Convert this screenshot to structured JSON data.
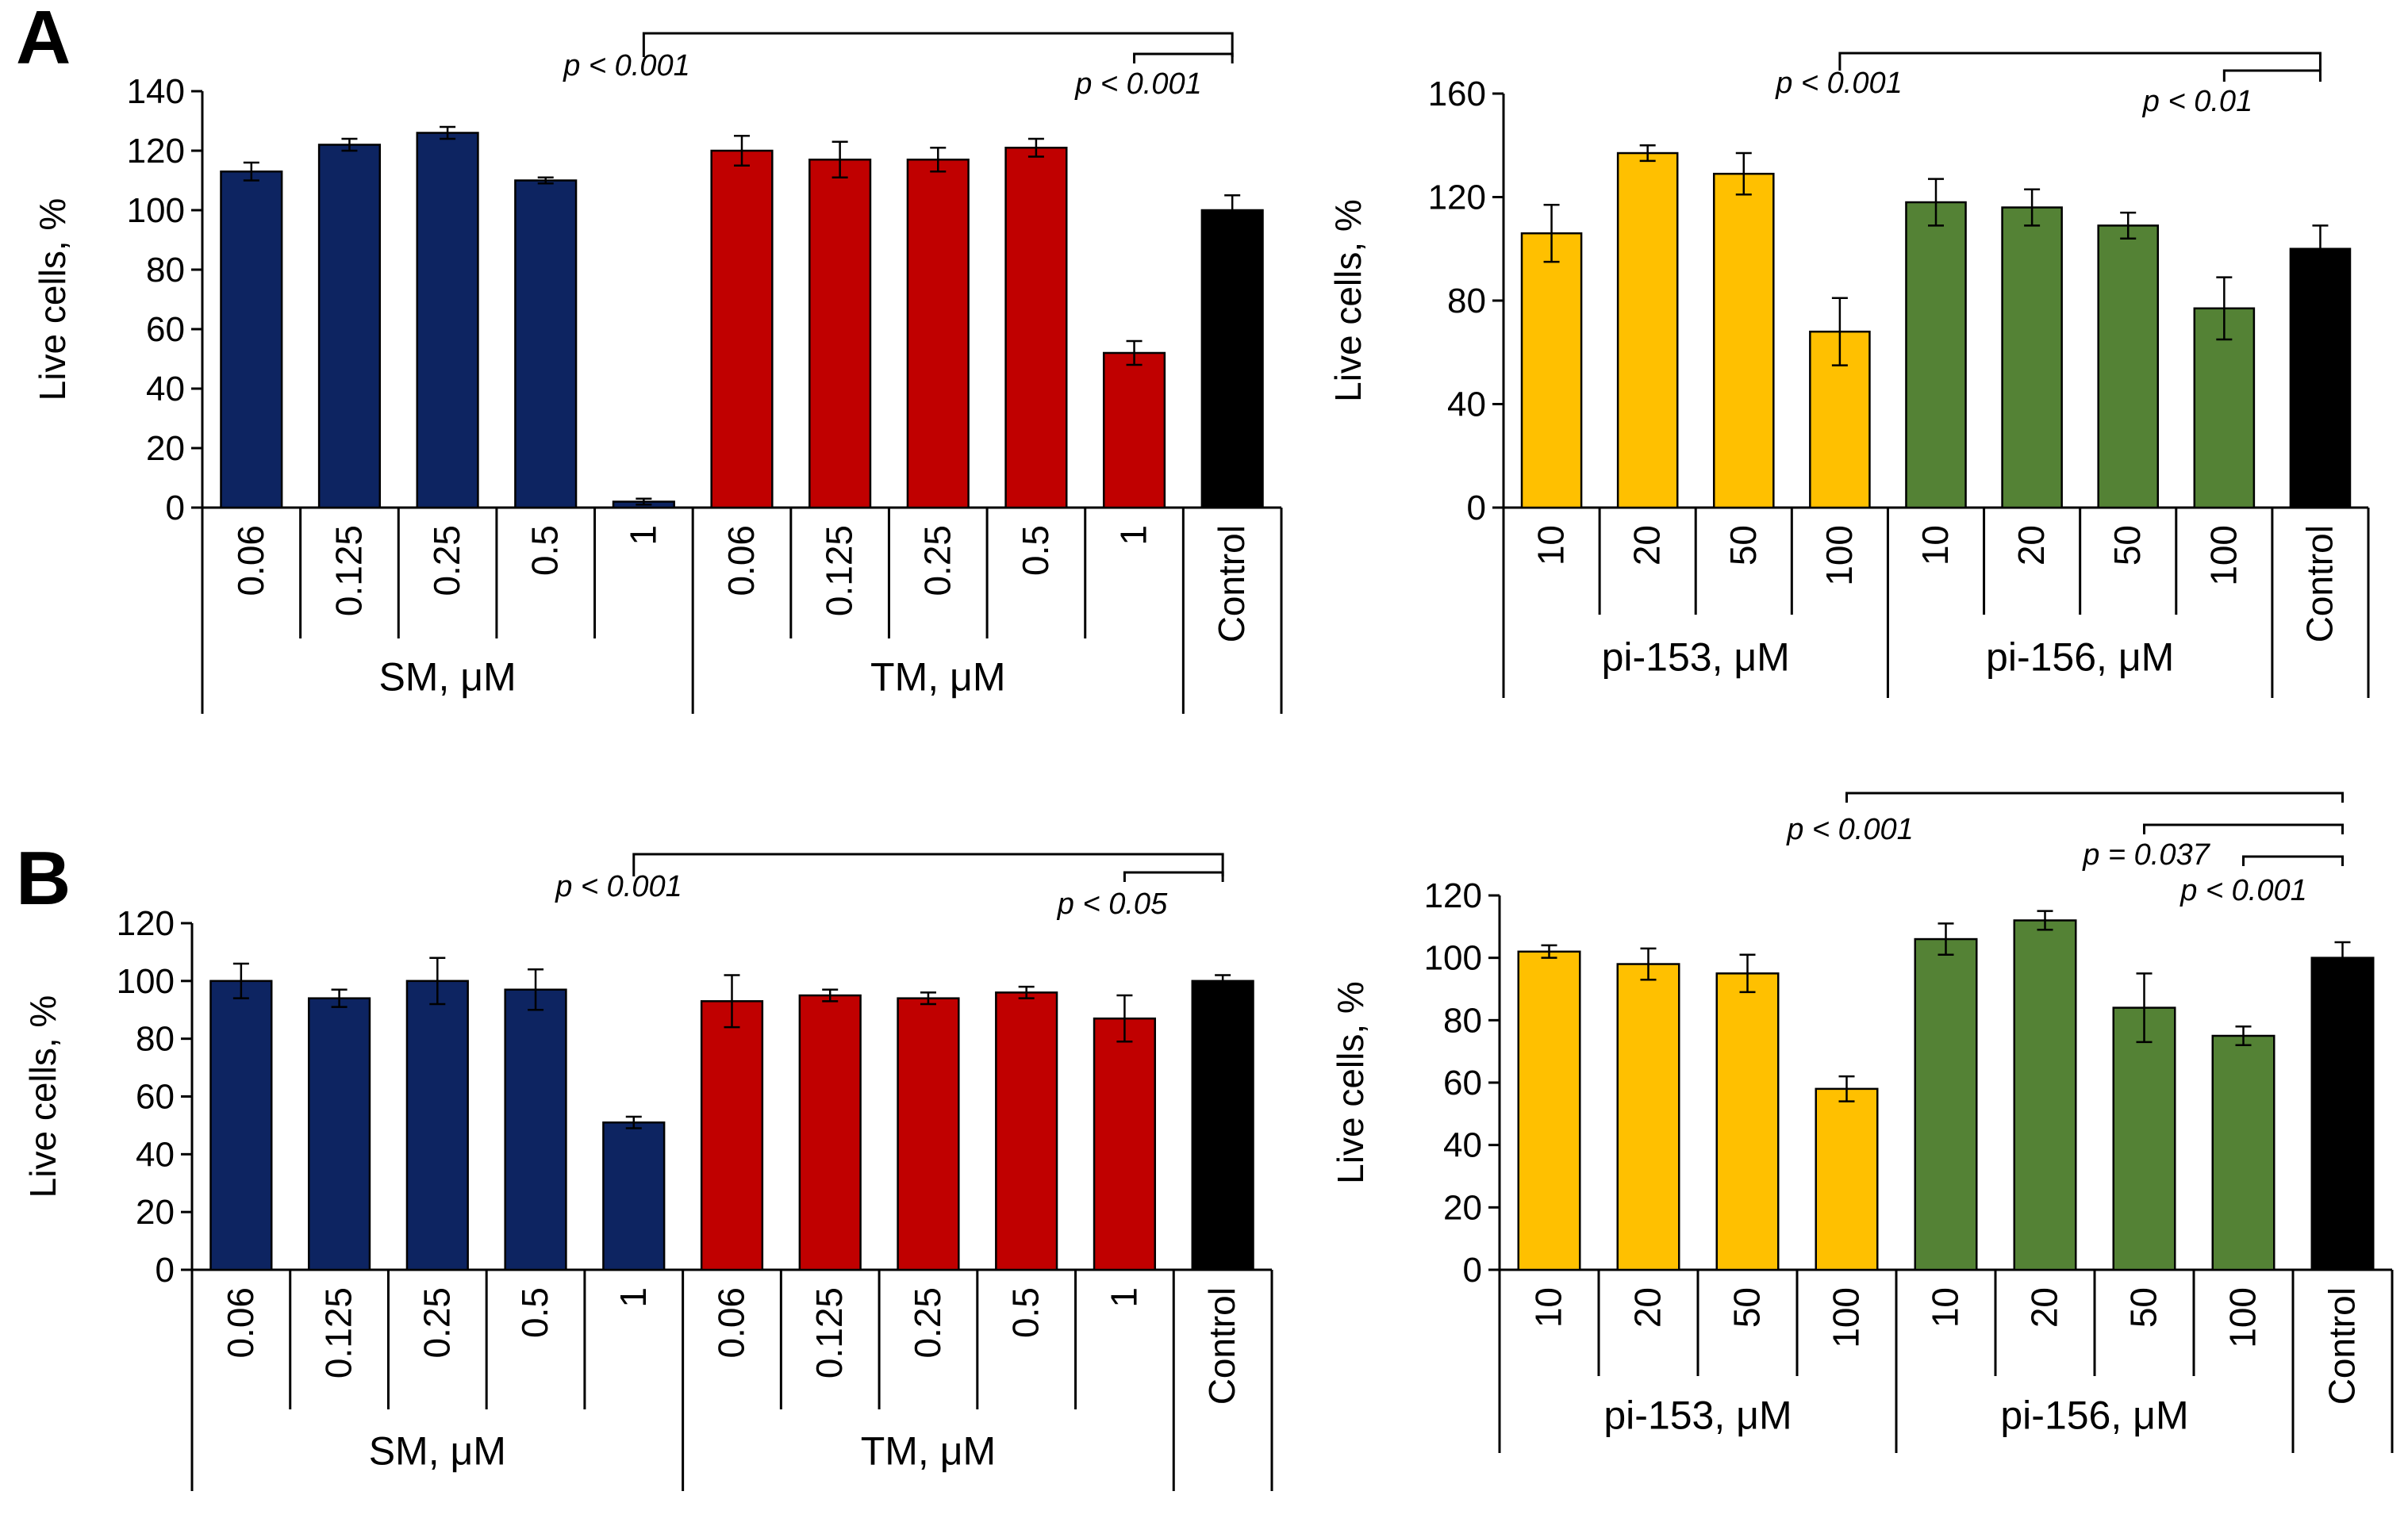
{
  "panels": [
    {
      "letter": "A"
    },
    {
      "letter": "B"
    }
  ],
  "chart_data": [
    {
      "id": "A-left",
      "type": "bar",
      "panel": "A",
      "ylabel": "Live cells, %",
      "ylim": [
        0,
        140
      ],
      "yticks": [
        0,
        20,
        40,
        60,
        80,
        100,
        120,
        140
      ],
      "groups": [
        {
          "label": "SM, μM",
          "categories": [
            "0.06",
            "0.125",
            "0.25",
            "0.5",
            "1"
          ],
          "color": "#0d2461",
          "values": [
            113,
            122,
            126,
            110,
            2
          ],
          "errors": [
            3,
            2,
            2,
            1,
            1
          ]
        },
        {
          "label": "TM, μM",
          "categories": [
            "0.06",
            "0.125",
            "0.25",
            "0.5",
            "1"
          ],
          "color": "#c00000",
          "values": [
            120,
            117,
            117,
            121,
            52
          ],
          "errors": [
            5,
            6,
            4,
            3,
            4
          ]
        },
        {
          "label": "",
          "categories": [
            "Control"
          ],
          "color": "#000000",
          "values": [
            100
          ],
          "errors": [
            5
          ]
        }
      ],
      "annotations": [
        {
          "text": "p < 0.001",
          "from": "SM, μM|1",
          "to": "Control"
        },
        {
          "text": "p < 0.001",
          "from": "TM, μM|1",
          "to": "Control"
        }
      ]
    },
    {
      "id": "A-right",
      "type": "bar",
      "panel": "A",
      "ylabel": "Live cells, %",
      "ylim": [
        0,
        160
      ],
      "yticks": [
        0,
        40,
        80,
        120,
        160
      ],
      "groups": [
        {
          "label": "pi-153, μM",
          "categories": [
            "10",
            "20",
            "50",
            "100"
          ],
          "color": "#ffc000",
          "values": [
            106,
            137,
            129,
            68
          ],
          "errors": [
            11,
            3,
            8,
            13
          ]
        },
        {
          "label": "pi-156, μM",
          "categories": [
            "10",
            "20",
            "50",
            "100"
          ],
          "color": "#548235",
          "values": [
            118,
            116,
            109,
            77
          ],
          "errors": [
            9,
            7,
            5,
            12
          ]
        },
        {
          "label": "",
          "categories": [
            "Control"
          ],
          "color": "#000000",
          "values": [
            100
          ],
          "errors": [
            9
          ]
        }
      ],
      "annotations": [
        {
          "text": "p < 0.001",
          "from": "pi-153, μM|100",
          "to": "Control"
        },
        {
          "text": "p < 0.01",
          "from": "pi-156, μM|100",
          "to": "Control"
        }
      ]
    },
    {
      "id": "B-left",
      "type": "bar",
      "panel": "B",
      "ylabel": "Live cells, %",
      "ylim": [
        0,
        120
      ],
      "yticks": [
        0,
        20,
        40,
        60,
        80,
        100,
        120
      ],
      "groups": [
        {
          "label": "SM, μM",
          "categories": [
            "0.06",
            "0.125",
            "0.25",
            "0.5",
            "1"
          ],
          "color": "#0d2461",
          "values": [
            100,
            94,
            100,
            97,
            51
          ],
          "errors": [
            6,
            3,
            8,
            7,
            2
          ]
        },
        {
          "label": "TM, μM",
          "categories": [
            "0.06",
            "0.125",
            "0.25",
            "0.5",
            "1"
          ],
          "color": "#c00000",
          "values": [
            93,
            95,
            94,
            96,
            87
          ],
          "errors": [
            9,
            2,
            2,
            2,
            8
          ]
        },
        {
          "label": "",
          "categories": [
            "Control"
          ],
          "color": "#000000",
          "values": [
            100
          ],
          "errors": [
            2
          ]
        }
      ],
      "annotations": [
        {
          "text": "p < 0.001",
          "from": "SM, μM|1",
          "to": "Control"
        },
        {
          "text": "p < 0.05",
          "from": "TM, μM|1",
          "to": "Control"
        }
      ]
    },
    {
      "id": "B-right",
      "type": "bar",
      "panel": "B",
      "ylabel": "Live cells, %",
      "ylim": [
        0,
        120
      ],
      "yticks": [
        0,
        20,
        40,
        60,
        80,
        100,
        120
      ],
      "groups": [
        {
          "label": "pi-153, μM",
          "categories": [
            "10",
            "20",
            "50",
            "100"
          ],
          "color": "#ffc000",
          "values": [
            102,
            98,
            95,
            58
          ],
          "errors": [
            2,
            5,
            6,
            4
          ]
        },
        {
          "label": "pi-156, μM",
          "categories": [
            "10",
            "20",
            "50",
            "100"
          ],
          "color": "#548235",
          "values": [
            106,
            112,
            84,
            75
          ],
          "errors": [
            5,
            3,
            11,
            3
          ]
        },
        {
          "label": "",
          "categories": [
            "Control"
          ],
          "color": "#000000",
          "values": [
            100
          ],
          "errors": [
            5
          ]
        }
      ],
      "annotations": [
        {
          "text": "p < 0.001",
          "from": "pi-153, μM|100",
          "to": "Control"
        },
        {
          "text": "p = 0.037",
          "from": "pi-156, μM|50",
          "to": "Control"
        },
        {
          "text": "p < 0.001",
          "from": "pi-156, μM|100",
          "to": "Control"
        }
      ]
    }
  ]
}
